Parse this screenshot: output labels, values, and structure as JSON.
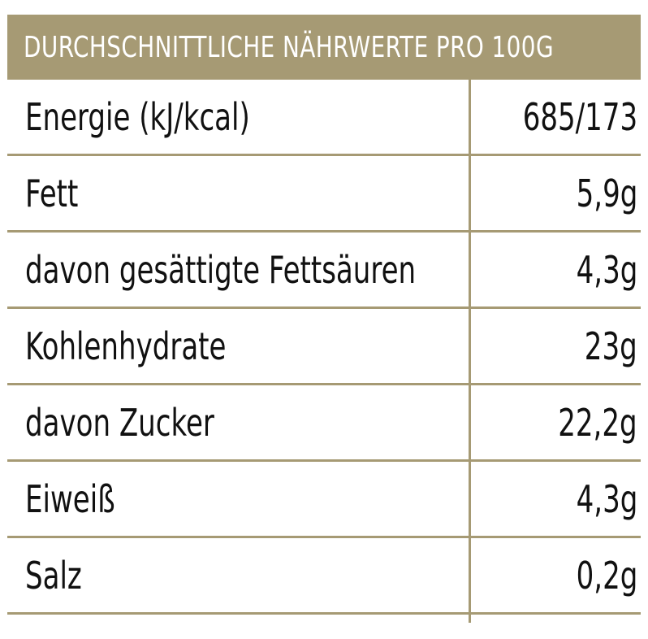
{
  "table": {
    "header": "DURCHSCHNITTLICHE NÄHRWERTE PRO 100G",
    "rows": [
      {
        "label": "Energie (kJ/kcal)",
        "value": "685/173"
      },
      {
        "label": "Fett",
        "value": "5,9g"
      },
      {
        "label": "davon gesättigte Fettsäuren",
        "value": "4,3g"
      },
      {
        "label": "Kohlenhydrate",
        "value": "23g"
      },
      {
        "label": "davon Zucker",
        "value": "22,2g"
      },
      {
        "label": "Eiweiß",
        "value": "4,3g"
      },
      {
        "label": "Salz",
        "value": "0,2g"
      }
    ]
  },
  "colors": {
    "accent": "#a69a74",
    "text": "#111111",
    "header_text": "#ffffff"
  }
}
